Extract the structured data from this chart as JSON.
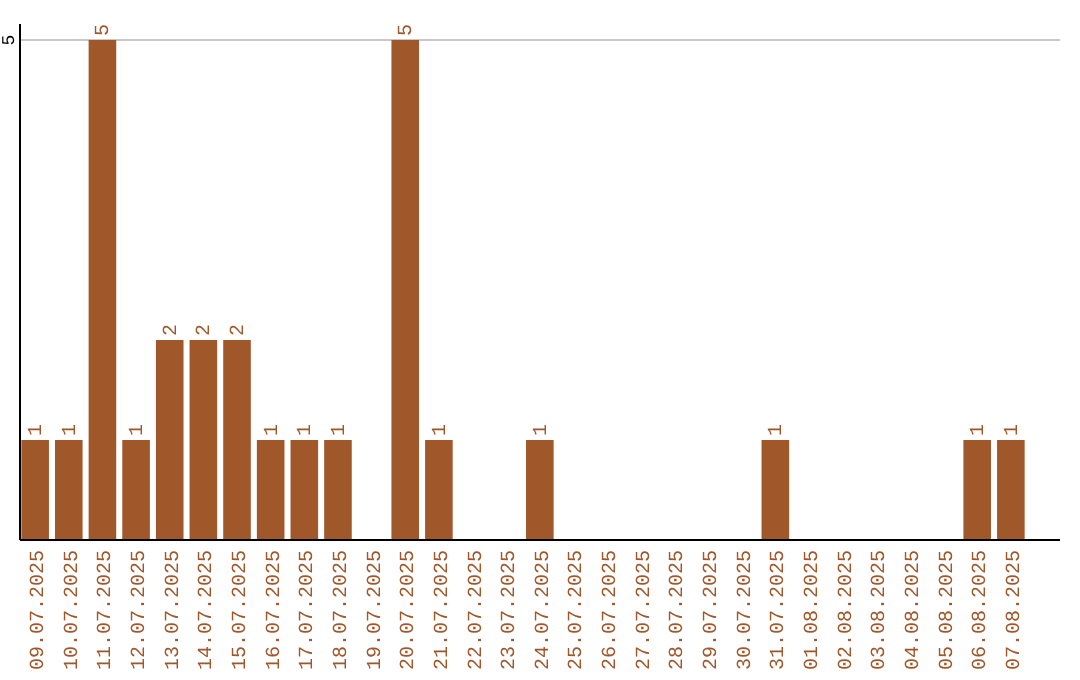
{
  "chart_data": {
    "type": "bar",
    "categories": [
      "09.07.2025",
      "10.07.2025",
      "11.07.2025",
      "12.07.2025",
      "13.07.2025",
      "14.07.2025",
      "15.07.2025",
      "16.07.2025",
      "17.07.2025",
      "18.07.2025",
      "19.07.2025",
      "20.07.2025",
      "21.07.2025",
      "22.07.2025",
      "23.07.2025",
      "24.07.2025",
      "25.07.2025",
      "26.07.2025",
      "27.07.2025",
      "28.07.2025",
      "29.07.2025",
      "30.07.2025",
      "31.07.2025",
      "01.08.2025",
      "02.08.2025",
      "03.08.2025",
      "04.08.2025",
      "05.08.2025",
      "06.08.2025",
      "07.08.2025"
    ],
    "values": [
      1,
      1,
      5,
      1,
      2,
      2,
      2,
      1,
      1,
      1,
      0,
      5,
      1,
      0,
      0,
      1,
      0,
      0,
      0,
      0,
      0,
      0,
      1,
      0,
      0,
      0,
      0,
      0,
      1,
      1
    ],
    "value_labels": [
      "1",
      "1",
      "5",
      "1",
      "2",
      "2",
      "2",
      "1",
      "1",
      "1",
      null,
      "5",
      "1",
      null,
      null,
      "1",
      null,
      null,
      null,
      null,
      null,
      null,
      "1",
      null,
      null,
      null,
      null,
      null,
      "1",
      "1"
    ],
    "color": "#a0572a",
    "ylim": [
      0,
      5
    ],
    "yticks": [
      5
    ],
    "ref_lines": [
      {
        "axis": "y",
        "value": 5,
        "color": "#c8c8c8"
      }
    ]
  }
}
